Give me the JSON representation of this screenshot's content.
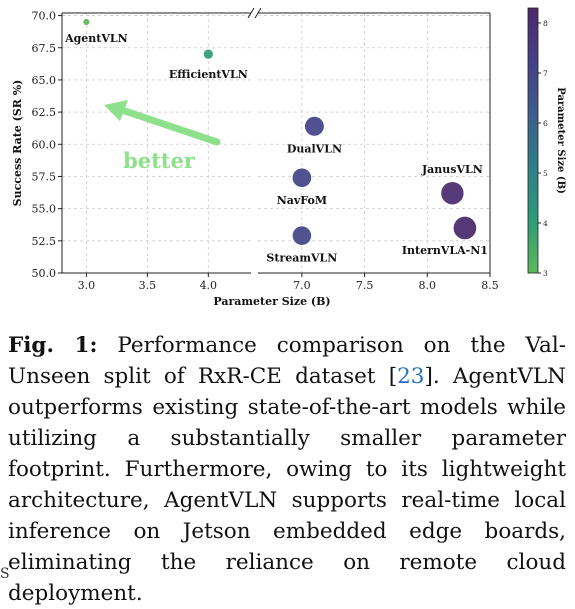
{
  "chart_data": {
    "type": "scatter",
    "ylabel": "Success Rate (SR %)",
    "xlabel": "Parameter Size (B)",
    "colorbar_label": "Parameter Size (B)",
    "colorbar_ticks": [
      "3",
      "4",
      "5",
      "6",
      "7",
      "8"
    ],
    "colorbar_range": [
      3,
      8.3
    ],
    "colormap": [
      "#5db85a",
      "#2e9b78",
      "#2f7e89",
      "#3c5e8c",
      "#463f87",
      "#4b2a6c"
    ],
    "ylim": [
      50,
      70.2
    ],
    "yticks": [
      "50.0",
      "52.5",
      "55.0",
      "57.5",
      "60.0",
      "62.5",
      "65.0",
      "67.5",
      "70.0"
    ],
    "x_broken_axis": true,
    "x_segments": [
      {
        "xlim": [
          2.8,
          4.35
        ],
        "ticks": [
          "3.0",
          "3.5",
          "4.0"
        ]
      },
      {
        "xlim": [
          6.65,
          8.5
        ],
        "ticks": [
          "7.0",
          "7.5",
          "8.0",
          "8.5"
        ]
      }
    ],
    "grid": true,
    "points": [
      {
        "label": "AgentVLN",
        "x": 3.0,
        "y": 69.5
      },
      {
        "label": "EfficientVLN",
        "x": 4.0,
        "y": 67.0
      },
      {
        "label": "DualVLN",
        "x": 7.1,
        "y": 61.4
      },
      {
        "label": "NavFoM",
        "x": 7.0,
        "y": 57.4
      },
      {
        "label": "JanusVLN",
        "x": 8.2,
        "y": 56.2
      },
      {
        "label": "StreamVLN",
        "x": 7.0,
        "y": 52.9
      },
      {
        "label": "InternVLA-N1",
        "x": 8.3,
        "y": 53.5
      }
    ],
    "annotation": {
      "text": "better",
      "color": "#8fe08a"
    }
  },
  "caption": {
    "label": "Fig. 1:",
    "text_before_ref": " Performance comparison on the Val-Unseen split of RxR-CE dataset [",
    "ref": "23",
    "text_after_ref": "]. AgentVLN outperforms existing state-of-the-art models while utilizing a substantially smaller parameter footprint. Furthermore, owing to its lightweight architecture, AgentVLN supports real-time local inference on Jetson embedded edge boards, eliminating the reliance on remote cloud deployment."
  },
  "footmark": "S"
}
